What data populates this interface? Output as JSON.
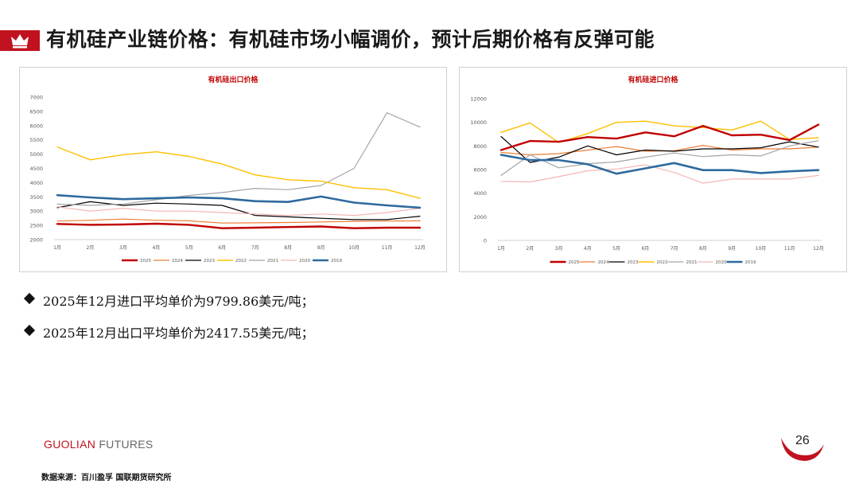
{
  "page": {
    "title": "有机硅产业链价格：有机硅市场小幅调价，预计后期价格有反弹可能",
    "bullets": [
      "2025年12月进口平均单价为9799.86美元/吨；",
      "2025年12月出口平均单价为2417.55美元/吨；"
    ],
    "footer_brand_a": "GUOLIAN",
    "footer_brand_b": "FUTURES",
    "page_number": "26",
    "source": "数据来源：百川盈孚  国联期货研究所"
  },
  "colors": {
    "brand_red": "#c1121f",
    "s2025": "#c00000",
    "s2024": "#ed7d31",
    "s2023": "#000000",
    "s2022": "#ffc000",
    "s2021": "#a5a5a5",
    "s2020": "#f4b6b4",
    "s2019": "#2e6a9e"
  },
  "chart_data": [
    {
      "type": "line",
      "title": "有机硅出口价格",
      "xlabel": "",
      "ylabel": "",
      "categories": [
        "1月",
        "2月",
        "3月",
        "4月",
        "5月",
        "6月",
        "7月",
        "8月",
        "9月",
        "10月",
        "11月",
        "12月"
      ],
      "yticks": [
        2000,
        2500,
        3000,
        3500,
        4000,
        4500,
        5000,
        5500,
        6000,
        6500,
        7000
      ],
      "ylim": [
        2000,
        7000
      ],
      "series": [
        {
          "name": "2025",
          "color_key": "s2025",
          "width": 2.4,
          "values": [
            2550,
            2520,
            2530,
            2560,
            2520,
            2400,
            2420,
            2440,
            2460,
            2400,
            2420,
            2418
          ]
        },
        {
          "name": "2024",
          "color_key": "s2024",
          "width": 1.2,
          "values": [
            2650,
            2680,
            2720,
            2680,
            2660,
            2580,
            2590,
            2600,
            2620,
            2640,
            2650,
            2660
          ]
        },
        {
          "name": "2023",
          "color_key": "s2023",
          "width": 1.2,
          "values": [
            3120,
            3330,
            3200,
            3280,
            3250,
            3200,
            2850,
            2800,
            2750,
            2700,
            2700,
            2820
          ]
        },
        {
          "name": "2022",
          "color_key": "s2022",
          "width": 1.4,
          "values": [
            5250,
            4800,
            4980,
            5080,
            4920,
            4650,
            4270,
            4100,
            4050,
            3820,
            3750,
            3450
          ]
        },
        {
          "name": "2021",
          "color_key": "s2021",
          "width": 1.2,
          "values": [
            3250,
            3200,
            3250,
            3400,
            3550,
            3650,
            3800,
            3750,
            3900,
            4500,
            6450,
            5950
          ]
        },
        {
          "name": "2020",
          "color_key": "s2020",
          "width": 1.2,
          "values": [
            3150,
            3000,
            3100,
            3000,
            3000,
            2950,
            2900,
            2850,
            2900,
            2850,
            2950,
            3100
          ]
        },
        {
          "name": "2019",
          "color_key": "s2019",
          "width": 2.6,
          "values": [
            3560,
            3480,
            3420,
            3450,
            3480,
            3450,
            3350,
            3320,
            3510,
            3300,
            3200,
            3120
          ]
        }
      ]
    },
    {
      "type": "line",
      "title": "有机硅进口价格",
      "xlabel": "",
      "ylabel": "",
      "categories": [
        "1月",
        "2月",
        "3月",
        "4月",
        "5月",
        "6月",
        "7月",
        "8月",
        "9月",
        "10月",
        "11月",
        "12月"
      ],
      "yticks": [
        0,
        2000,
        4000,
        6000,
        8000,
        10000,
        12000
      ],
      "ylim": [
        0,
        12000
      ],
      "series": [
        {
          "name": "2025",
          "color_key": "s2025",
          "width": 2.4,
          "values": [
            7650,
            8420,
            8350,
            8750,
            8620,
            9150,
            8820,
            9700,
            8900,
            8950,
            8500,
            9800
          ]
        },
        {
          "name": "2024",
          "color_key": "s2024",
          "width": 1.2,
          "values": [
            7450,
            7250,
            7350,
            7650,
            7950,
            7550,
            7600,
            8050,
            7650,
            7750,
            7750,
            7900
          ]
        },
        {
          "name": "2023",
          "color_key": "s2023",
          "width": 1.2,
          "values": [
            8800,
            6600,
            7050,
            8000,
            7250,
            7650,
            7550,
            7750,
            7750,
            7850,
            8350,
            7900
          ]
        },
        {
          "name": "2022",
          "color_key": "s2022",
          "width": 1.4,
          "values": [
            9150,
            9950,
            8300,
            9050,
            10000,
            10100,
            9700,
            9550,
            9350,
            10100,
            8550,
            8700
          ]
        },
        {
          "name": "2021",
          "color_key": "s2021",
          "width": 1.2,
          "values": [
            5500,
            7250,
            6150,
            6500,
            6650,
            7050,
            7400,
            7100,
            7250,
            7150,
            8000,
            8450
          ]
        },
        {
          "name": "2020",
          "color_key": "s2020",
          "width": 1.2,
          "values": [
            5000,
            4950,
            5400,
            5900,
            6050,
            6400,
            5750,
            4850,
            5200,
            5200,
            5200,
            5500
          ]
        },
        {
          "name": "2019",
          "color_key": "s2019",
          "width": 2.6,
          "values": [
            7250,
            6800,
            6800,
            6450,
            5650,
            6100,
            6550,
            5950,
            5950,
            5700,
            5850,
            5950
          ]
        }
      ]
    }
  ]
}
